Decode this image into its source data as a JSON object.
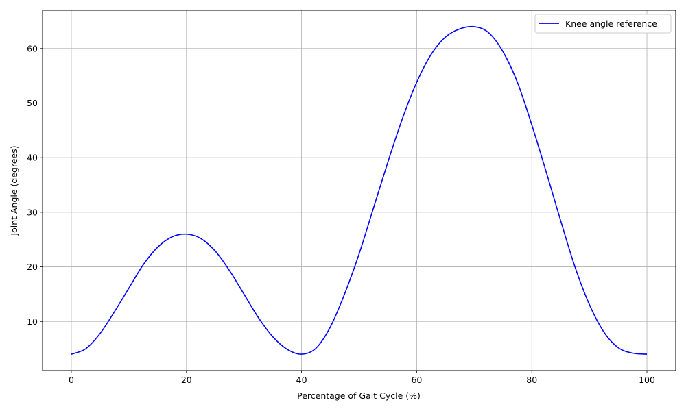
{
  "chart_data": {
    "type": "line",
    "xlabel": "Percentage of Gait Cycle (%)",
    "ylabel": "Joint Angle (degrees)",
    "xlim": [
      -5,
      105
    ],
    "ylim": [
      1.0,
      67.0
    ],
    "xticks": [
      "0",
      "20",
      "40",
      "60",
      "80",
      "100"
    ],
    "yticks": [
      "10",
      "20",
      "30",
      "40",
      "50",
      "60"
    ],
    "grid": true,
    "legend_position": "top-right",
    "series": [
      {
        "name": "Knee angle reference",
        "color": "#0000ff",
        "x": [
          0,
          2.5,
          5,
          7.5,
          10,
          12.5,
          15,
          17.5,
          20,
          22.5,
          25,
          27.5,
          30,
          32.5,
          35,
          37.5,
          40,
          42.5,
          45,
          47.5,
          50,
          52.5,
          55,
          57.5,
          60,
          62.5,
          65,
          67.5,
          70,
          72.5,
          75,
          77.5,
          80,
          82.5,
          85,
          87.5,
          90,
          92.5,
          95,
          97.5,
          100
        ],
        "values": [
          4.0,
          5.0,
          7.8,
          11.8,
          16.1,
          20.4,
          23.6,
          25.5,
          26.0,
          25.2,
          22.9,
          19.3,
          15.0,
          10.7,
          7.2,
          4.9,
          4.0,
          5.1,
          9.0,
          15.1,
          22.4,
          30.8,
          39.2,
          47.1,
          53.8,
          58.9,
          62.1,
          63.6,
          64.0,
          62.9,
          59.4,
          53.8,
          46.0,
          37.4,
          28.5,
          20.0,
          13.1,
          8.1,
          5.2,
          4.2,
          4.0
        ]
      }
    ]
  }
}
